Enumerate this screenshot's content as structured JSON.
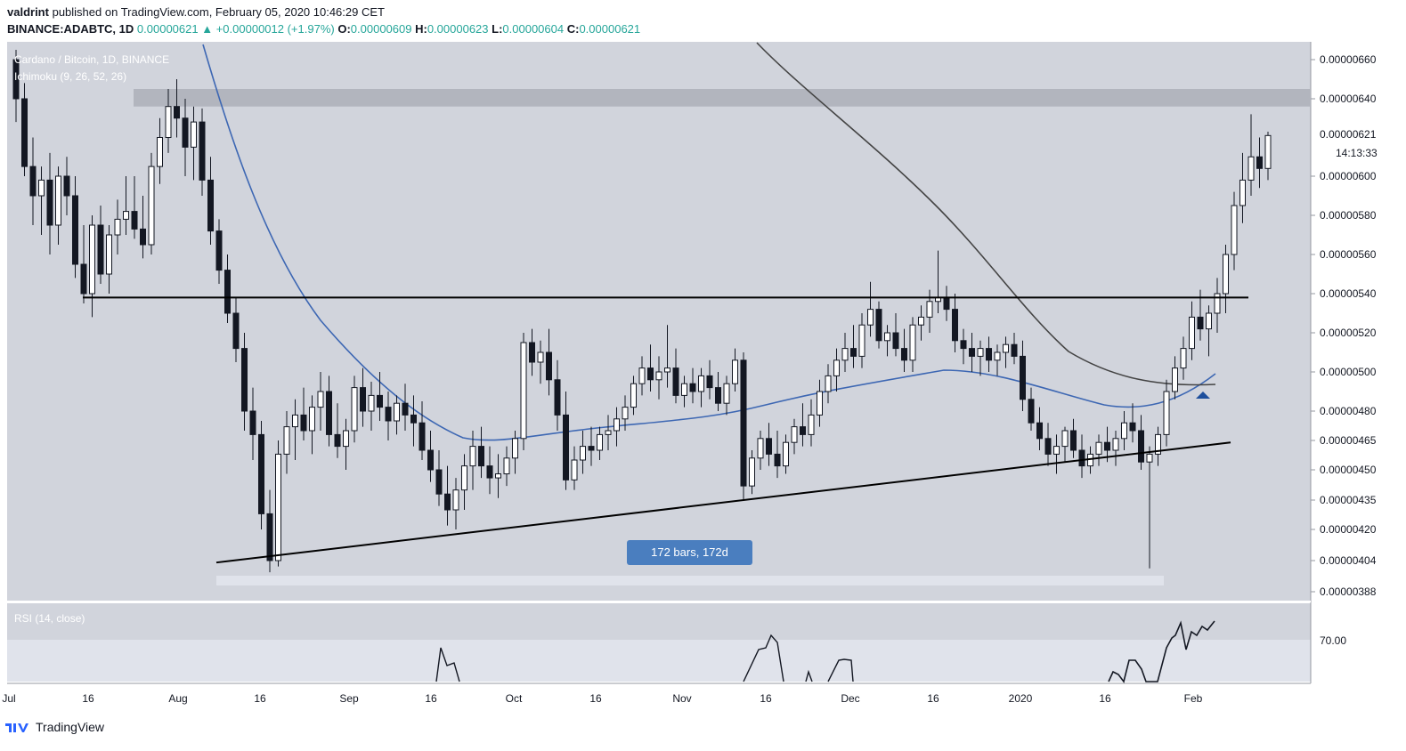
{
  "header": {
    "publisher": "valdrint",
    "published_text": "published on TradingView.com, February 05, 2020 10:46:29 CET",
    "symbol": "BINANCE:ADABTC, 1D",
    "last": "0.00000621",
    "change": "+0.00000012 (+1.97%)",
    "o_label": "O:",
    "o": "0.00000609",
    "h_label": "H:",
    "h": "0.00000623",
    "l_label": "L:",
    "l": "0.00000604",
    "c_label": "C:",
    "c": "0.00000621"
  },
  "legend": {
    "title": "Cardano / Bitcoin, 1D, BINANCE",
    "indicator": "Ichimoku (9, 26, 52, 26)"
  },
  "price_label": "0.00000621",
  "countdown": "14:13:33",
  "measure_label": "172 bars, 172d",
  "rsi_label": "RSI (14, close)",
  "rsi_tick": "70.00",
  "footer": {
    "brand": "TradingView"
  },
  "colors": {
    "pane_bg": "#d1d4dc",
    "blue_line": "#3d67b3",
    "dark_line": "#444444",
    "resistance_band": "#b2b5be",
    "measure_badge": "#4a7ebf"
  },
  "chart_data": {
    "type": "candlestick",
    "title": "Cardano / Bitcoin, 1D, BINANCE",
    "y_axis_ticks": [
      "0.00000660",
      "0.00000640",
      "0.00000621",
      "0.00000600",
      "0.00000580",
      "0.00000560",
      "0.00000540",
      "0.00000520",
      "0.00000500",
      "0.00000480",
      "0.00000465",
      "0.00000450",
      "0.00000435",
      "0.00000420",
      "0.00000404",
      "0.00000388"
    ],
    "x_axis_ticks": [
      "Jul",
      "16",
      "Aug",
      "16",
      "Sep",
      "16",
      "Oct",
      "16",
      "Nov",
      "16",
      "Dec",
      "16",
      "2020",
      "16",
      "Feb"
    ],
    "ylim": [
      3.88e-06,
      6.6e-06
    ],
    "horizontal_resistance_zone": [
      6.35e-06,
      6.4e-06
    ],
    "horizontal_support_line": 5.38e-06,
    "ascending_trendline": [
      {
        "x": "Aug 7",
        "y": 4.04e-06
      },
      {
        "x": "Feb 8",
        "y": 4.64e-06
      }
    ],
    "rsi": {
      "name": "RSI (14, close)",
      "level": 70.0
    },
    "candles": [
      [
        660,
        665,
        628,
        640
      ],
      [
        640,
        648,
        600,
        605
      ],
      [
        605,
        620,
        575,
        590
      ],
      [
        590,
        605,
        570,
        598
      ],
      [
        598,
        612,
        560,
        575
      ],
      [
        575,
        605,
        565,
        600
      ],
      [
        600,
        610,
        580,
        590
      ],
      [
        590,
        600,
        548,
        555
      ],
      [
        555,
        575,
        535,
        540
      ],
      [
        540,
        580,
        528,
        575
      ],
      [
        575,
        585,
        545,
        550
      ],
      [
        550,
        575,
        540,
        570
      ],
      [
        570,
        588,
        560,
        578
      ],
      [
        578,
        600,
        570,
        582
      ],
      [
        582,
        600,
        568,
        573
      ],
      [
        573,
        590,
        558,
        565
      ],
      [
        565,
        612,
        560,
        605
      ],
      [
        605,
        630,
        596,
        620
      ],
      [
        620,
        645,
        612,
        636
      ],
      [
        636,
        650,
        620,
        630
      ],
      [
        630,
        640,
        600,
        615
      ],
      [
        615,
        636,
        598,
        628
      ],
      [
        628,
        635,
        590,
        598
      ],
      [
        598,
        610,
        565,
        572
      ],
      [
        572,
        578,
        545,
        552
      ],
      [
        552,
        560,
        525,
        530
      ],
      [
        530,
        538,
        505,
        512
      ],
      [
        512,
        520,
        470,
        480
      ],
      [
        480,
        492,
        455,
        468
      ],
      [
        468,
        475,
        420,
        428
      ],
      [
        428,
        440,
        398,
        404
      ],
      [
        404,
        465,
        401,
        458
      ],
      [
        458,
        480,
        448,
        472
      ],
      [
        472,
        486,
        455,
        478
      ],
      [
        478,
        492,
        465,
        470
      ],
      [
        470,
        488,
        458,
        482
      ],
      [
        482,
        500,
        470,
        490
      ],
      [
        490,
        498,
        462,
        468
      ],
      [
        468,
        484,
        456,
        462
      ],
      [
        462,
        476,
        450,
        470
      ],
      [
        470,
        498,
        464,
        492
      ],
      [
        492,
        502,
        472,
        480
      ],
      [
        480,
        495,
        470,
        488
      ],
      [
        488,
        500,
        475,
        482
      ],
      [
        482,
        490,
        465,
        475
      ],
      [
        475,
        488,
        468,
        484
      ],
      [
        484,
        494,
        470,
        478
      ],
      [
        478,
        488,
        462,
        474
      ],
      [
        474,
        485,
        455,
        460
      ],
      [
        460,
        470,
        444,
        450
      ],
      [
        450,
        460,
        432,
        438
      ],
      [
        438,
        452,
        422,
        430
      ],
      [
        430,
        446,
        420,
        440
      ],
      [
        440,
        458,
        430,
        452
      ],
      [
        452,
        470,
        440,
        462
      ],
      [
        462,
        472,
        446,
        452
      ],
      [
        452,
        462,
        438,
        446
      ],
      [
        446,
        458,
        436,
        448
      ],
      [
        448,
        462,
        442,
        456
      ],
      [
        456,
        470,
        448,
        466
      ],
      [
        466,
        520,
        460,
        515
      ],
      [
        515,
        522,
        498,
        505
      ],
      [
        505,
        516,
        494,
        510
      ],
      [
        510,
        522,
        488,
        496
      ],
      [
        496,
        506,
        470,
        478
      ],
      [
        478,
        490,
        440,
        445
      ],
      [
        445,
        462,
        440,
        455
      ],
      [
        455,
        470,
        448,
        462
      ],
      [
        462,
        472,
        452,
        460
      ],
      [
        460,
        472,
        455,
        468
      ],
      [
        468,
        478,
        460,
        470
      ],
      [
        470,
        482,
        462,
        476
      ],
      [
        476,
        488,
        470,
        482
      ],
      [
        482,
        498,
        478,
        494
      ],
      [
        494,
        508,
        488,
        502
      ],
      [
        502,
        514,
        490,
        496
      ],
      [
        496,
        508,
        486,
        500
      ],
      [
        500,
        524,
        492,
        502
      ],
      [
        502,
        512,
        484,
        488
      ],
      [
        488,
        498,
        482,
        494
      ],
      [
        494,
        502,
        484,
        490
      ],
      [
        490,
        502,
        482,
        498
      ],
      [
        498,
        506,
        486,
        492
      ],
      [
        492,
        500,
        480,
        484
      ],
      [
        484,
        498,
        478,
        494
      ],
      [
        494,
        512,
        490,
        506
      ],
      [
        506,
        510,
        435,
        442
      ],
      [
        442,
        460,
        438,
        456
      ],
      [
        456,
        470,
        450,
        466
      ],
      [
        466,
        474,
        452,
        458
      ],
      [
        458,
        470,
        446,
        452
      ],
      [
        452,
        468,
        448,
        464
      ],
      [
        464,
        476,
        458,
        472
      ],
      [
        472,
        484,
        462,
        468
      ],
      [
        468,
        486,
        462,
        478
      ],
      [
        478,
        496,
        472,
        490
      ],
      [
        490,
        504,
        484,
        498
      ],
      [
        498,
        512,
        490,
        506
      ],
      [
        506,
        520,
        500,
        512
      ],
      [
        512,
        524,
        502,
        508
      ],
      [
        508,
        530,
        502,
        524
      ],
      [
        524,
        546,
        518,
        532
      ],
      [
        532,
        536,
        512,
        516
      ],
      [
        516,
        524,
        508,
        520
      ],
      [
        520,
        530,
        508,
        512
      ],
      [
        512,
        522,
        500,
        506
      ],
      [
        506,
        528,
        500,
        524
      ],
      [
        524,
        534,
        516,
        528
      ],
      [
        528,
        542,
        520,
        536
      ],
      [
        536,
        562,
        530,
        538
      ],
      [
        538,
        544,
        526,
        532
      ],
      [
        532,
        540,
        510,
        516
      ],
      [
        516,
        522,
        504,
        512
      ],
      [
        512,
        520,
        500,
        508
      ],
      [
        508,
        516,
        498,
        512
      ],
      [
        512,
        518,
        500,
        506
      ],
      [
        506,
        514,
        498,
        510
      ],
      [
        510,
        518,
        502,
        514
      ],
      [
        514,
        520,
        504,
        508
      ],
      [
        508,
        516,
        480,
        486
      ],
      [
        486,
        492,
        470,
        474
      ],
      [
        474,
        482,
        460,
        466
      ],
      [
        466,
        474,
        452,
        458
      ],
      [
        458,
        468,
        448,
        462
      ],
      [
        462,
        472,
        454,
        470
      ],
      [
        470,
        476,
        456,
        460
      ],
      [
        460,
        468,
        446,
        452
      ],
      [
        452,
        462,
        448,
        458
      ],
      [
        458,
        468,
        452,
        464
      ],
      [
        464,
        472,
        454,
        460
      ],
      [
        460,
        470,
        452,
        466
      ],
      [
        466,
        480,
        460,
        474
      ],
      [
        474,
        484,
        464,
        470
      ],
      [
        470,
        478,
        450,
        454
      ],
      [
        454,
        462,
        400,
        458
      ],
      [
        458,
        472,
        452,
        468
      ],
      [
        468,
        496,
        462,
        490
      ],
      [
        490,
        508,
        486,
        502
      ],
      [
        502,
        518,
        496,
        512
      ],
      [
        512,
        536,
        506,
        528
      ],
      [
        528,
        542,
        516,
        522
      ],
      [
        522,
        534,
        508,
        530
      ],
      [
        530,
        548,
        520,
        540
      ],
      [
        540,
        565,
        530,
        560
      ],
      [
        560,
        592,
        552,
        585
      ],
      [
        585,
        612,
        576,
        598
      ],
      [
        598,
        632,
        590,
        610
      ],
      [
        610,
        620,
        594,
        604
      ],
      [
        604,
        623,
        598,
        621
      ]
    ]
  }
}
